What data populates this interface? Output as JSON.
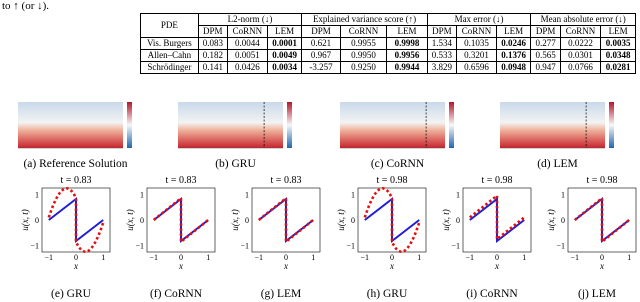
{
  "intro": "to ↑ (or ↓).",
  "table": {
    "header": [
      "PDE",
      "L2-norm (↓)",
      "Explained variance score (↑)",
      "Max error (↓)",
      "Mean absolute error (↓)"
    ],
    "subheader": [
      "DPM",
      "CoRNN",
      "LEM"
    ],
    "rows": [
      [
        "Vis. Burgers",
        "0.083",
        "0.0044",
        "0.0001",
        "0.621",
        "0.9955",
        "0.9998",
        "1.534",
        "0.1035",
        "0.0246",
        "0.277",
        "0.0222",
        "0.0035"
      ],
      [
        "Allen–Cahn",
        "0.182",
        "0.0051",
        "0.0049",
        "0.967",
        "0.9950",
        "0.9956",
        "0.533",
        "0.3201",
        "0.1376",
        "0.565",
        "0.0301",
        "0.0348"
      ],
      [
        "Schrödinger",
        "0.141",
        "0.0426",
        "0.0034",
        "-3.257",
        "0.9250",
        "0.9944",
        "3.829",
        "0.6596",
        "0.0948",
        "0.947",
        "0.0766",
        "0.0281"
      ]
    ]
  },
  "heatmaps": [
    {
      "caption": "(a) Reference Solution"
    },
    {
      "caption": "(b) GRU"
    },
    {
      "caption": "(c) CoRNN"
    },
    {
      "caption": "(d) LEM"
    }
  ],
  "plot_axes": {
    "xlabel": "x",
    "ylabel": "u(x, t)",
    "ticks": [
      "−1",
      "0",
      "1"
    ]
  },
  "plots": [
    {
      "title": "t = 0.83",
      "caption": "(e) GRU"
    },
    {
      "title": "t = 0.83",
      "caption": "(f) CoRNN"
    },
    {
      "title": "t = 0.83",
      "caption": "(g) LEM"
    },
    {
      "title": "t = 0.98",
      "caption": "(h) GRU"
    },
    {
      "title": "t = 0.98",
      "caption": "(i) CoRNN"
    },
    {
      "title": "t = 0.98",
      "caption": "(j) LEM"
    }
  ]
}
